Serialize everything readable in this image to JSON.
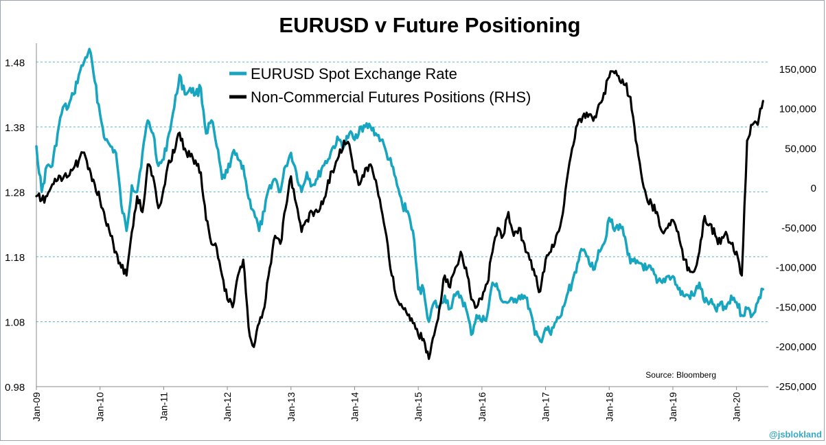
{
  "chart_data": {
    "type": "line",
    "title": "EURUSD v Future Positioning",
    "source": "Source: Bloomberg",
    "watermark": "@jsblokland",
    "legend_position": "top-center",
    "grid": "dashed horizontal",
    "y_left": {
      "range": [
        0.98,
        1.53
      ],
      "ticks": [
        0.98,
        1.08,
        1.18,
        1.28,
        1.38,
        1.48
      ],
      "tick_labels": [
        "0.98",
        "1.08",
        "1.18",
        "1.28",
        "1.38",
        "1.48"
      ]
    },
    "y_right": {
      "range": [
        -250000,
        200000
      ],
      "ticks": [
        -250000,
        -200000,
        -150000,
        -100000,
        -50000,
        0,
        50000,
        100000,
        150000
      ],
      "tick_labels": [
        "-250,000",
        "-200,000",
        "-150,000",
        "-100,000",
        "-50,000",
        "0",
        "50,000",
        "100,000",
        "150,000"
      ]
    },
    "x_axis": {
      "range": [
        "2009-01",
        "2020-07"
      ],
      "tick_labels": [
        "Jan-09",
        "Jan-10",
        "Jan-11",
        "Jan-12",
        "Jan-13",
        "Jan-14",
        "Jan-15",
        "Jan-16",
        "Jan-17",
        "Jan-18",
        "Jan-19",
        "Jan-20"
      ]
    },
    "series": [
      {
        "name": "EURUSD Spot Exchange Rate",
        "axis": "left",
        "color": "#17a5bf",
        "points": [
          [
            "2009-01",
            1.35
          ],
          [
            "2009-02",
            1.28
          ],
          [
            "2009-03",
            1.32
          ],
          [
            "2009-04",
            1.32
          ],
          [
            "2009-05",
            1.37
          ],
          [
            "2009-06",
            1.41
          ],
          [
            "2009-07",
            1.41
          ],
          [
            "2009-08",
            1.43
          ],
          [
            "2009-09",
            1.46
          ],
          [
            "2009-10",
            1.48
          ],
          [
            "2009-11",
            1.5
          ],
          [
            "2009-12",
            1.45
          ],
          [
            "2010-01",
            1.4
          ],
          [
            "2010-02",
            1.36
          ],
          [
            "2010-03",
            1.35
          ],
          [
            "2010-04",
            1.34
          ],
          [
            "2010-05",
            1.26
          ],
          [
            "2010-06",
            1.22
          ],
          [
            "2010-07",
            1.29
          ],
          [
            "2010-08",
            1.28
          ],
          [
            "2010-09",
            1.34
          ],
          [
            "2010-10",
            1.39
          ],
          [
            "2010-11",
            1.37
          ],
          [
            "2010-12",
            1.32
          ],
          [
            "2011-01",
            1.33
          ],
          [
            "2011-02",
            1.37
          ],
          [
            "2011-03",
            1.41
          ],
          [
            "2011-04",
            1.46
          ],
          [
            "2011-05",
            1.43
          ],
          [
            "2011-06",
            1.44
          ],
          [
            "2011-07",
            1.43
          ],
          [
            "2011-08",
            1.44
          ],
          [
            "2011-09",
            1.37
          ],
          [
            "2011-10",
            1.39
          ],
          [
            "2011-11",
            1.35
          ],
          [
            "2011-12",
            1.3
          ],
          [
            "2012-01",
            1.31
          ],
          [
            "2012-02",
            1.34
          ],
          [
            "2012-03",
            1.33
          ],
          [
            "2012-04",
            1.32
          ],
          [
            "2012-05",
            1.27
          ],
          [
            "2012-06",
            1.25
          ],
          [
            "2012-07",
            1.22
          ],
          [
            "2012-08",
            1.25
          ],
          [
            "2012-09",
            1.29
          ],
          [
            "2012-10",
            1.3
          ],
          [
            "2012-11",
            1.28
          ],
          [
            "2012-12",
            1.32
          ],
          [
            "2013-01",
            1.34
          ],
          [
            "2013-02",
            1.31
          ],
          [
            "2013-03",
            1.28
          ],
          [
            "2013-04",
            1.31
          ],
          [
            "2013-05",
            1.29
          ],
          [
            "2013-06",
            1.3
          ],
          [
            "2013-07",
            1.32
          ],
          [
            "2013-08",
            1.33
          ],
          [
            "2013-09",
            1.35
          ],
          [
            "2013-10",
            1.36
          ],
          [
            "2013-11",
            1.35
          ],
          [
            "2013-12",
            1.37
          ],
          [
            "2014-01",
            1.36
          ],
          [
            "2014-02",
            1.38
          ],
          [
            "2014-03",
            1.38
          ],
          [
            "2014-04",
            1.38
          ],
          [
            "2014-05",
            1.37
          ],
          [
            "2014-06",
            1.36
          ],
          [
            "2014-07",
            1.34
          ],
          [
            "2014-08",
            1.32
          ],
          [
            "2014-09",
            1.29
          ],
          [
            "2014-10",
            1.26
          ],
          [
            "2014-11",
            1.25
          ],
          [
            "2014-12",
            1.22
          ],
          [
            "2015-01",
            1.13
          ],
          [
            "2015-02",
            1.13
          ],
          [
            "2015-03",
            1.08
          ],
          [
            "2015-04",
            1.11
          ],
          [
            "2015-05",
            1.1
          ],
          [
            "2015-06",
            1.12
          ],
          [
            "2015-07",
            1.1
          ],
          [
            "2015-08",
            1.12
          ],
          [
            "2015-09",
            1.12
          ],
          [
            "2015-10",
            1.1
          ],
          [
            "2015-11",
            1.06
          ],
          [
            "2015-12",
            1.09
          ],
          [
            "2016-01",
            1.08
          ],
          [
            "2016-02",
            1.09
          ],
          [
            "2016-03",
            1.14
          ],
          [
            "2016-04",
            1.13
          ],
          [
            "2016-05",
            1.11
          ],
          [
            "2016-06",
            1.11
          ],
          [
            "2016-07",
            1.11
          ],
          [
            "2016-08",
            1.12
          ],
          [
            "2016-09",
            1.12
          ],
          [
            "2016-10",
            1.1
          ],
          [
            "2016-11",
            1.06
          ],
          [
            "2016-12",
            1.05
          ],
          [
            "2017-01",
            1.07
          ],
          [
            "2017-02",
            1.06
          ],
          [
            "2017-03",
            1.08
          ],
          [
            "2017-04",
            1.09
          ],
          [
            "2017-05",
            1.12
          ],
          [
            "2017-06",
            1.14
          ],
          [
            "2017-07",
            1.17
          ],
          [
            "2017-08",
            1.19
          ],
          [
            "2017-09",
            1.18
          ],
          [
            "2017-10",
            1.16
          ],
          [
            "2017-11",
            1.19
          ],
          [
            "2017-12",
            1.2
          ],
          [
            "2018-01",
            1.24
          ],
          [
            "2018-02",
            1.22
          ],
          [
            "2018-03",
            1.23
          ],
          [
            "2018-04",
            1.21
          ],
          [
            "2018-05",
            1.17
          ],
          [
            "2018-06",
            1.17
          ],
          [
            "2018-07",
            1.17
          ],
          [
            "2018-08",
            1.16
          ],
          [
            "2018-09",
            1.16
          ],
          [
            "2018-10",
            1.14
          ],
          [
            "2018-11",
            1.14
          ],
          [
            "2018-12",
            1.15
          ],
          [
            "2019-01",
            1.15
          ],
          [
            "2019-02",
            1.13
          ],
          [
            "2019-03",
            1.12
          ],
          [
            "2019-04",
            1.12
          ],
          [
            "2019-05",
            1.12
          ],
          [
            "2019-06",
            1.14
          ],
          [
            "2019-07",
            1.11
          ],
          [
            "2019-08",
            1.11
          ],
          [
            "2019-09",
            1.1
          ],
          [
            "2019-10",
            1.11
          ],
          [
            "2019-11",
            1.1
          ],
          [
            "2019-12",
            1.12
          ],
          [
            "2020-01",
            1.11
          ],
          [
            "2020-02",
            1.09
          ],
          [
            "2020-03",
            1.1
          ],
          [
            "2020-04",
            1.09
          ],
          [
            "2020-05",
            1.11
          ],
          [
            "2020-06",
            1.13
          ]
        ]
      },
      {
        "name": "Non-Commercial Futures Positions (RHS)",
        "axis": "right",
        "color": "#000000",
        "points": [
          [
            "2009-01",
            -10000
          ],
          [
            "2009-02",
            -15000
          ],
          [
            "2009-03",
            -10000
          ],
          [
            "2009-04",
            5000
          ],
          [
            "2009-05",
            10000
          ],
          [
            "2009-06",
            12000
          ],
          [
            "2009-07",
            15000
          ],
          [
            "2009-08",
            25000
          ],
          [
            "2009-09",
            35000
          ],
          [
            "2009-10",
            45000
          ],
          [
            "2009-11",
            25000
          ],
          [
            "2009-12",
            5000
          ],
          [
            "2010-01",
            -15000
          ],
          [
            "2010-02",
            -40000
          ],
          [
            "2010-03",
            -60000
          ],
          [
            "2010-04",
            -80000
          ],
          [
            "2010-05",
            -100000
          ],
          [
            "2010-06",
            -110000
          ],
          [
            "2010-07",
            -55000
          ],
          [
            "2010-08",
            -10000
          ],
          [
            "2010-09",
            -30000
          ],
          [
            "2010-10",
            30000
          ],
          [
            "2010-11",
            15000
          ],
          [
            "2010-12",
            -25000
          ],
          [
            "2011-01",
            0
          ],
          [
            "2011-02",
            35000
          ],
          [
            "2011-03",
            45000
          ],
          [
            "2011-04",
            70000
          ],
          [
            "2011-05",
            50000
          ],
          [
            "2011-06",
            40000
          ],
          [
            "2011-07",
            35000
          ],
          [
            "2011-08",
            20000
          ],
          [
            "2011-09",
            -40000
          ],
          [
            "2011-10",
            -70000
          ],
          [
            "2011-11",
            -75000
          ],
          [
            "2011-12",
            -110000
          ],
          [
            "2012-01",
            -140000
          ],
          [
            "2012-02",
            -150000
          ],
          [
            "2012-03",
            -110000
          ],
          [
            "2012-04",
            -90000
          ],
          [
            "2012-05",
            -175000
          ],
          [
            "2012-06",
            -200000
          ],
          [
            "2012-07",
            -170000
          ],
          [
            "2012-08",
            -150000
          ],
          [
            "2012-09",
            -100000
          ],
          [
            "2012-10",
            -60000
          ],
          [
            "2012-11",
            -70000
          ],
          [
            "2012-12",
            -25000
          ],
          [
            "2013-01",
            15000
          ],
          [
            "2013-02",
            -20000
          ],
          [
            "2013-03",
            -55000
          ],
          [
            "2013-04",
            -40000
          ],
          [
            "2013-05",
            -30000
          ],
          [
            "2013-06",
            -30000
          ],
          [
            "2013-07",
            -20000
          ],
          [
            "2013-08",
            10000
          ],
          [
            "2013-09",
            20000
          ],
          [
            "2013-10",
            40000
          ],
          [
            "2013-11",
            60000
          ],
          [
            "2013-12",
            55000
          ],
          [
            "2014-01",
            20000
          ],
          [
            "2014-02",
            5000
          ],
          [
            "2014-03",
            25000
          ],
          [
            "2014-04",
            30000
          ],
          [
            "2014-05",
            10000
          ],
          [
            "2014-06",
            -25000
          ],
          [
            "2014-07",
            -60000
          ],
          [
            "2014-08",
            -110000
          ],
          [
            "2014-09",
            -140000
          ],
          [
            "2014-10",
            -150000
          ],
          [
            "2014-11",
            -160000
          ],
          [
            "2014-12",
            -170000
          ],
          [
            "2015-01",
            -185000
          ],
          [
            "2015-02",
            -190000
          ],
          [
            "2015-03",
            -215000
          ],
          [
            "2015-04",
            -185000
          ],
          [
            "2015-05",
            -150000
          ],
          [
            "2015-06",
            -110000
          ],
          [
            "2015-07",
            -125000
          ],
          [
            "2015-08",
            -100000
          ],
          [
            "2015-09",
            -80000
          ],
          [
            "2015-10",
            -100000
          ],
          [
            "2015-11",
            -140000
          ],
          [
            "2015-12",
            -150000
          ],
          [
            "2016-01",
            -140000
          ],
          [
            "2016-02",
            -120000
          ],
          [
            "2016-03",
            -80000
          ],
          [
            "2016-04",
            -50000
          ],
          [
            "2016-05",
            -60000
          ],
          [
            "2016-06",
            -30000
          ],
          [
            "2016-07",
            -60000
          ],
          [
            "2016-08",
            -50000
          ],
          [
            "2016-09",
            -70000
          ],
          [
            "2016-10",
            -90000
          ],
          [
            "2016-11",
            -110000
          ],
          [
            "2016-12",
            -130000
          ],
          [
            "2017-01",
            -90000
          ],
          [
            "2017-02",
            -80000
          ],
          [
            "2017-03",
            -60000
          ],
          [
            "2017-04",
            -40000
          ],
          [
            "2017-05",
            10000
          ],
          [
            "2017-06",
            50000
          ],
          [
            "2017-07",
            80000
          ],
          [
            "2017-08",
            90000
          ],
          [
            "2017-09",
            90000
          ],
          [
            "2017-10",
            85000
          ],
          [
            "2017-11",
            105000
          ],
          [
            "2017-12",
            120000
          ],
          [
            "2018-01",
            140000
          ],
          [
            "2018-02",
            145000
          ],
          [
            "2018-03",
            135000
          ],
          [
            "2018-04",
            130000
          ],
          [
            "2018-05",
            115000
          ],
          [
            "2018-06",
            60000
          ],
          [
            "2018-07",
            20000
          ],
          [
            "2018-08",
            -10000
          ],
          [
            "2018-09",
            -20000
          ],
          [
            "2018-10",
            -30000
          ],
          [
            "2018-11",
            -55000
          ],
          [
            "2018-12",
            -50000
          ],
          [
            "2019-01",
            -40000
          ],
          [
            "2019-02",
            -55000
          ],
          [
            "2019-03",
            -90000
          ],
          [
            "2019-04",
            -100000
          ],
          [
            "2019-05",
            -105000
          ],
          [
            "2019-06",
            -80000
          ],
          [
            "2019-07",
            -35000
          ],
          [
            "2019-08",
            -45000
          ],
          [
            "2019-09",
            -60000
          ],
          [
            "2019-10",
            -70000
          ],
          [
            "2019-11",
            -55000
          ],
          [
            "2019-12",
            -70000
          ],
          [
            "2020-01",
            -80000
          ],
          [
            "2020-02",
            -110000
          ],
          [
            "2020-03",
            60000
          ],
          [
            "2020-04",
            80000
          ],
          [
            "2020-05",
            80000
          ],
          [
            "2020-06",
            110000
          ]
        ]
      }
    ]
  }
}
